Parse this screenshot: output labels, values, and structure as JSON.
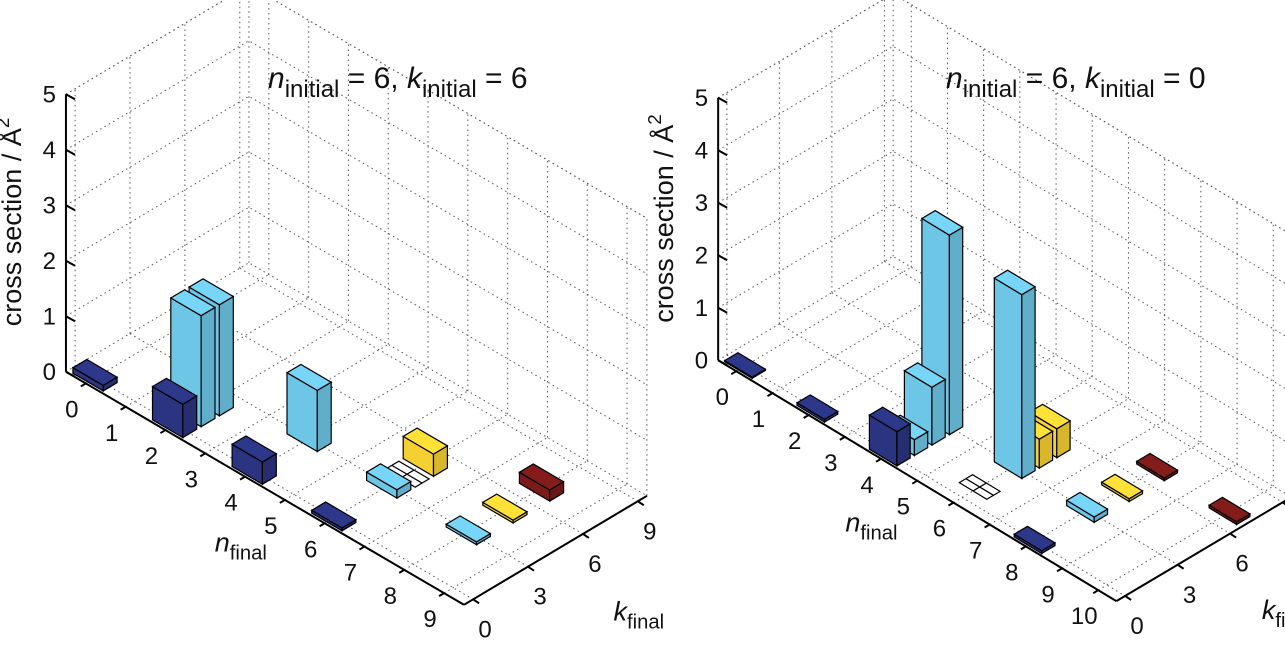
{
  "chart_data": [
    {
      "type": "bar3d",
      "title": {
        "n_sym": "n",
        "n_sub": "initial",
        "n_val": "6",
        "k_sym": "k",
        "k_sub": "initial",
        "k_val": "6"
      },
      "zlabel": {
        "text": "cross section / Å",
        "sup": "2"
      },
      "xlabel": {
        "sym": "n",
        "sub": "final"
      },
      "ylabel": {
        "sym": "k",
        "sub": "final"
      },
      "z_ticks": [
        "0",
        "1",
        "2",
        "3",
        "4",
        "5"
      ],
      "n_ticks": [
        "0",
        "1",
        "2",
        "3",
        "4",
        "5",
        "6",
        "7",
        "8",
        "9"
      ],
      "k_ticks": [
        "0",
        "3",
        "6",
        "9"
      ],
      "zlim": [
        0,
        5
      ],
      "n_range": [
        0,
        9
      ],
      "k_range": [
        0,
        9
      ],
      "grid": true,
      "bars": [
        {
          "n": 0,
          "k": 0,
          "value": 0.1,
          "color": "#2b3480"
        },
        {
          "n": 2,
          "k": 0,
          "value": 0.6,
          "color": "#2b3480"
        },
        {
          "n": 4,
          "k": 0,
          "value": 0.4,
          "color": "#2b3480"
        },
        {
          "n": 6,
          "k": 0,
          "value": 0.05,
          "color": "#2b3480"
        },
        {
          "n": 2,
          "k": 1,
          "value": 2.0,
          "color": "#6ec6e6"
        },
        {
          "n": 2,
          "k": 2,
          "value": 2.0,
          "color": "#6ec6e6"
        },
        {
          "n": 4,
          "k": 3,
          "value": 1.1,
          "color": "#6ec6e6"
        },
        {
          "n": 6,
          "k": 3,
          "value": 0.15,
          "color": "#6ec6e6"
        },
        {
          "n": 8,
          "k": 3,
          "value": 0.05,
          "color": "#6ec6e6"
        },
        {
          "n": 6,
          "k": 4,
          "value": 0.0,
          "color": "#ffffff"
        },
        {
          "n": 6,
          "k": 5,
          "value": 0.4,
          "color": "#f5d033"
        },
        {
          "n": 8,
          "k": 5,
          "value": 0.05,
          "color": "#f5d033"
        },
        {
          "n": 8,
          "k": 7,
          "value": 0.2,
          "color": "#7a1a1a"
        }
      ]
    },
    {
      "type": "bar3d",
      "title": {
        "n_sym": "n",
        "n_sub": "initial",
        "n_val": "6",
        "k_sym": "k",
        "k_sub": "initial",
        "k_val": "0"
      },
      "zlabel": {
        "text": "cross section / Å",
        "sup": "2"
      },
      "xlabel": {
        "sym": "n",
        "sub": "final"
      },
      "ylabel": {
        "sym": "k",
        "sub": "final"
      },
      "z_ticks": [
        "0",
        "1",
        "2",
        "3",
        "4",
        "5"
      ],
      "n_ticks": [
        "0",
        "1",
        "2",
        "3",
        "4",
        "5",
        "6",
        "7",
        "8",
        "9",
        "10"
      ],
      "k_ticks": [
        "0",
        "3",
        "6",
        "9"
      ],
      "zlim": [
        0,
        5
      ],
      "n_range": [
        0,
        10
      ],
      "k_range": [
        0,
        9
      ],
      "grid": true,
      "bars": [
        {
          "n": 0,
          "k": 0,
          "value": 0.02,
          "color": "#2b3480"
        },
        {
          "n": 2,
          "k": 0,
          "value": 0.05,
          "color": "#2b3480"
        },
        {
          "n": 4,
          "k": 0,
          "value": 0.65,
          "color": "#2b3480"
        },
        {
          "n": 8,
          "k": 0,
          "value": 0.05,
          "color": "#2b3480"
        },
        {
          "n": 4,
          "k": 1,
          "value": 0.3,
          "color": "#6ec6e6"
        },
        {
          "n": 4,
          "k": 2,
          "value": 1.1,
          "color": "#6ec6e6"
        },
        {
          "n": 4,
          "k": 3,
          "value": 3.8,
          "color": "#6ec6e6"
        },
        {
          "n": 6,
          "k": 3,
          "value": 3.5,
          "color": "#6ec6e6"
        },
        {
          "n": 8,
          "k": 3,
          "value": 0.1,
          "color": "#6ec6e6"
        },
        {
          "n": 6,
          "k": 1,
          "value": 0.0,
          "color": "#ffffff"
        },
        {
          "n": 6,
          "k": 4,
          "value": 0.55,
          "color": "#f5d033"
        },
        {
          "n": 6,
          "k": 5,
          "value": 0.55,
          "color": "#f5d033"
        },
        {
          "n": 8,
          "k": 5,
          "value": 0.05,
          "color": "#f5d033"
        },
        {
          "n": 8,
          "k": 7,
          "value": 0.05,
          "color": "#7a1a1a"
        },
        {
          "n": 10,
          "k": 7,
          "value": 0.05,
          "color": "#7a1a1a"
        }
      ]
    }
  ]
}
